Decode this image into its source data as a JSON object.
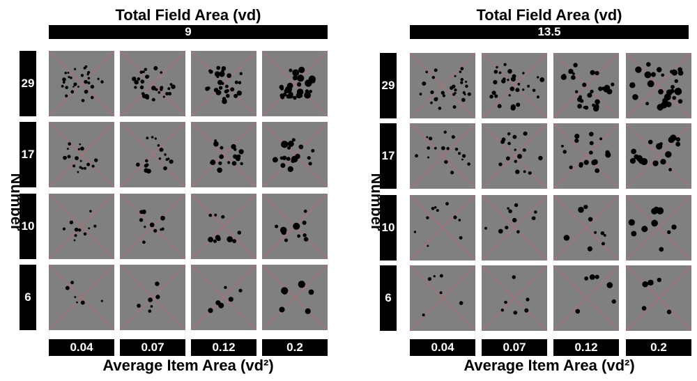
{
  "panels": [
    {
      "title": "Total Field Area (vd)",
      "field_value": "9",
      "y_label": "Number",
      "x_label": "Average Item Area (vd²)",
      "rows": [
        "29",
        "17",
        "10",
        "6"
      ],
      "cols": [
        "0.04",
        "0.07",
        "0.12",
        "0.2"
      ]
    },
    {
      "title": "Total Field Area (vd)",
      "field_value": "13.5",
      "y_label": "Number",
      "x_label": "Average Item Area (vd²)",
      "rows": [
        "29",
        "17",
        "10",
        "6"
      ],
      "cols": [
        "0.04",
        "0.07",
        "0.12",
        "0.2"
      ]
    }
  ],
  "colors": {
    "cell_background": "#808080",
    "cross_lines": "#c06878",
    "dots": "#000000",
    "label_bars": "#000000",
    "label_text": "#ffffff"
  }
}
